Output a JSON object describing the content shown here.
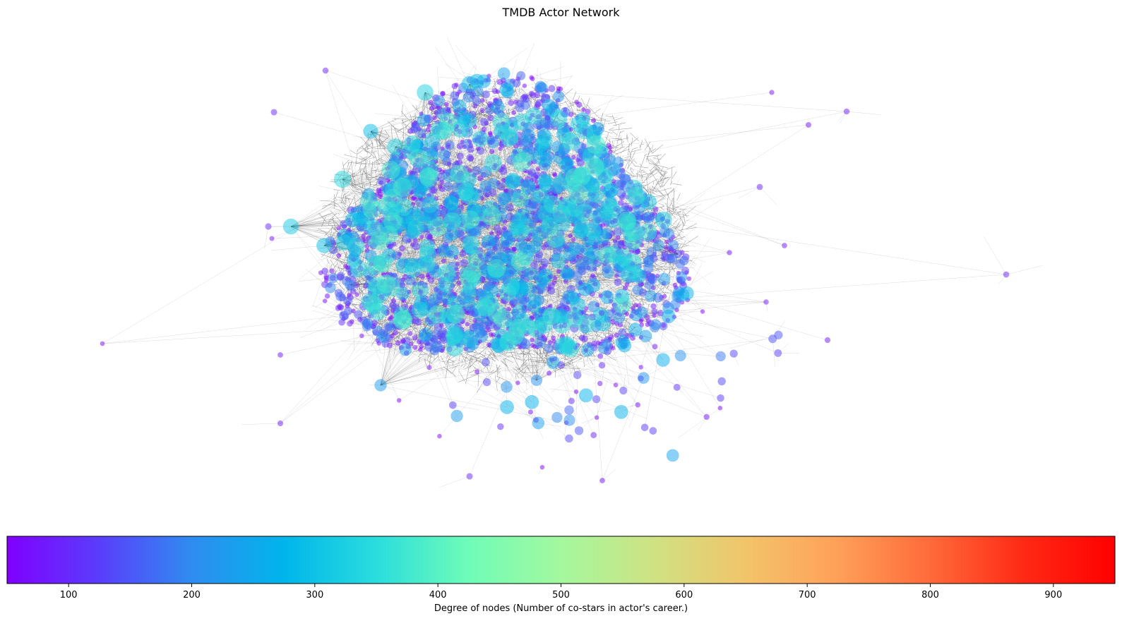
{
  "title": "TMDB Actor Network",
  "colorbar": {
    "label": "Degree of nodes (Number of co-stars in actor's career.)",
    "min": 50,
    "max": 950,
    "ticks": [
      100,
      200,
      300,
      400,
      500,
      600,
      700,
      800,
      900
    ],
    "colormap": "rainbow",
    "colors": [
      "#8000ff",
      "#5a3dfc",
      "#2f8cf0",
      "#00b5eb",
      "#2adddd",
      "#6ffcb8",
      "#a4f89e",
      "#cfe283",
      "#f2c46a",
      "#ffa059",
      "#ff6a3a",
      "#ff2a15",
      "#ff0000"
    ]
  },
  "legend": {
    "node_color": "degree",
    "node_size": "degree",
    "edge_color": "#000000"
  }
}
